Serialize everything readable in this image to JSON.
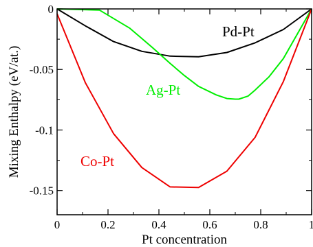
{
  "chart_data": {
    "type": "line",
    "title": "",
    "xlabel": "Pt concentration",
    "ylabel": "Mixing Enthalpy (eV/at.)",
    "xlim": [
      0,
      1
    ],
    "ylim": [
      -0.17,
      0
    ],
    "grid": false,
    "xticks": [
      {
        "value": 0,
        "label": "0"
      },
      {
        "value": 0.2,
        "label": "0.2"
      },
      {
        "value": 0.4,
        "label": "0.4"
      },
      {
        "value": 0.6,
        "label": "0.6"
      },
      {
        "value": 0.8,
        "label": "0.8"
      },
      {
        "value": 1,
        "label": "1"
      }
    ],
    "yticks": [
      {
        "value": 0,
        "label": "0"
      },
      {
        "value": -0.05,
        "label": "-0.05"
      },
      {
        "value": -0.1,
        "label": "-0.1"
      },
      {
        "value": -0.15,
        "label": "-0.15"
      }
    ],
    "series": [
      {
        "name": "Pd-Pt",
        "color": "#000000",
        "x": [
          0,
          0.111,
          0.222,
          0.333,
          0.444,
          0.556,
          0.667,
          0.778,
          0.889,
          1
        ],
        "y": [
          0,
          -0.014,
          -0.027,
          -0.035,
          -0.039,
          -0.0395,
          -0.036,
          -0.028,
          -0.017,
          0
        ]
      },
      {
        "name": "Ag-Pt",
        "color": "#00ee00",
        "x": [
          0,
          0.167,
          0.286,
          0.375,
          0.444,
          0.5,
          0.556,
          0.625,
          0.667,
          0.7,
          0.714,
          0.75,
          0.778,
          0.833,
          0.889,
          1
        ],
        "y": [
          0,
          -0.001,
          -0.016,
          -0.032,
          -0.045,
          -0.055,
          -0.064,
          -0.071,
          -0.074,
          -0.0745,
          -0.0745,
          -0.072,
          -0.067,
          -0.056,
          -0.041,
          0
        ]
      },
      {
        "name": "Co-Pt",
        "color": "#ee0000",
        "x": [
          0,
          0.111,
          0.222,
          0.333,
          0.444,
          0.556,
          0.667,
          0.778,
          0.889,
          1
        ],
        "y": [
          -0.004,
          -0.061,
          -0.103,
          -0.131,
          -0.147,
          -0.1475,
          -0.134,
          -0.106,
          -0.06,
          0
        ]
      }
    ]
  }
}
